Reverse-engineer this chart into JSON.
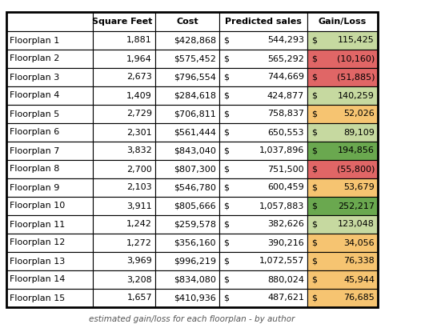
{
  "headers": [
    "",
    "Square Feet",
    "Cost",
    "Predicted sales",
    "Gain/Loss"
  ],
  "rows": [
    [
      "Floorplan 1",
      "1,881",
      "$428,868",
      "544,293",
      "115,425"
    ],
    [
      "Floorplan 2",
      "1,964",
      "$575,452",
      "565,292",
      "(10,160)"
    ],
    [
      "Floorplan 3",
      "2,673",
      "$796,554",
      "744,669",
      "(51,885)"
    ],
    [
      "Floorplan 4",
      "1,409",
      "$284,618",
      "424,877",
      "140,259"
    ],
    [
      "Floorplan 5",
      "2,729",
      "$706,811",
      "758,837",
      "52,026"
    ],
    [
      "Floorplan 6",
      "2,301",
      "$561,444",
      "650,553",
      "89,109"
    ],
    [
      "Floorplan 7",
      "3,832",
      "$843,040",
      "1,037,896",
      "194,856"
    ],
    [
      "Floorplan 8",
      "2,700",
      "$807,300",
      "751,500",
      "(55,800)"
    ],
    [
      "Floorplan 9",
      "2,103",
      "$546,780",
      "600,459",
      "53,679"
    ],
    [
      "Floorplan 10",
      "3,911",
      "$805,666",
      "1,057,883",
      "252,217"
    ],
    [
      "Floorplan 11",
      "1,242",
      "$259,578",
      "382,626",
      "123,048"
    ],
    [
      "Floorplan 12",
      "1,272",
      "$356,160",
      "390,216",
      "34,056"
    ],
    [
      "Floorplan 13",
      "3,969",
      "$996,219",
      "1,072,557",
      "76,338"
    ],
    [
      "Floorplan 14",
      "3,208",
      "$834,080",
      "880,024",
      "45,944"
    ],
    [
      "Floorplan 15",
      "1,657",
      "$410,936",
      "487,621",
      "76,685"
    ]
  ],
  "gain_loss_colors": [
    "#c6d9a0",
    "#e06666",
    "#e06666",
    "#c6d9a0",
    "#f6c471",
    "#c6d9a0",
    "#6aa84f",
    "#e06666",
    "#f6c471",
    "#6aa84f",
    "#c6d9a0",
    "#f6c471",
    "#f6c471",
    "#f6c471",
    "#f6c471"
  ],
  "font_size": 8.0,
  "background_color": "#ffffff",
  "border_color": "#000000",
  "text_color": "#000000",
  "title": "estimated gain/loss for each floorplan - by author"
}
